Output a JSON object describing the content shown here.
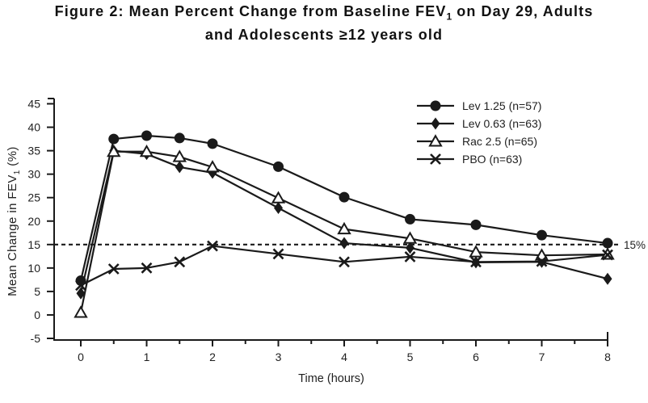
{
  "title": {
    "line1_pre": "Figure 2: Mean Percent Change from Baseline FEV",
    "line1_sub": "1",
    "line1_post": " on Day 29, Adults",
    "line2": "and Adolescents ≥12 years old"
  },
  "chart_data": {
    "type": "line",
    "title": "Figure 2: Mean Percent Change from Baseline FEV1 on Day 29, Adults and Adolescents ≥12 years old",
    "xlabel": "Time (hours)",
    "ylabel_pre": "Mean Change in FEV",
    "ylabel_sub": "1",
    "ylabel_post": " (%)",
    "xlim": [
      0,
      8
    ],
    "ylim": [
      -5,
      45
    ],
    "xticks": [
      0,
      1,
      2,
      3,
      4,
      5,
      6,
      7,
      8
    ],
    "xtick_minor_step": 0.5,
    "yticks": [
      -5,
      0,
      5,
      10,
      15,
      20,
      25,
      30,
      35,
      40,
      45
    ],
    "grid": false,
    "legend_position": "top-right",
    "line_color": "#1a1a1a",
    "background_color": "#ffffff",
    "reference_line": {
      "value": 15,
      "label": "15%",
      "style": "dashed"
    },
    "x": [
      0,
      0.5,
      1,
      1.5,
      2,
      3,
      4,
      5,
      6,
      7,
      8
    ],
    "series": [
      {
        "key": "lev-1-25",
        "name": "Lev 1.25 (n=57)",
        "marker": "circle-filled",
        "values": [
          7.3,
          37.5,
          38.2,
          37.7,
          36.5,
          31.6,
          25.1,
          20.4,
          19.2,
          17.0,
          15.3
        ]
      },
      {
        "key": "lev-0-63",
        "name": "Lev 0.63 (n=63)",
        "marker": "diamond-filled",
        "values": [
          4.6,
          35.0,
          34.3,
          31.5,
          30.3,
          22.8,
          15.3,
          14.3,
          11.2,
          11.3,
          7.7
        ]
      },
      {
        "key": "rac-2-5",
        "name": "Rac 2.5 (n=65)",
        "marker": "triangle-open",
        "values": [
          0.5,
          34.8,
          34.8,
          33.7,
          31.5,
          24.9,
          18.3,
          16.3,
          13.4,
          12.7,
          12.9
        ]
      },
      {
        "key": "pbo",
        "name": "PBO (n=63)",
        "marker": "x",
        "values": [
          6.3,
          9.8,
          10.0,
          11.3,
          14.7,
          13.0,
          11.3,
          12.4,
          11.3,
          11.4,
          12.8
        ]
      }
    ]
  }
}
